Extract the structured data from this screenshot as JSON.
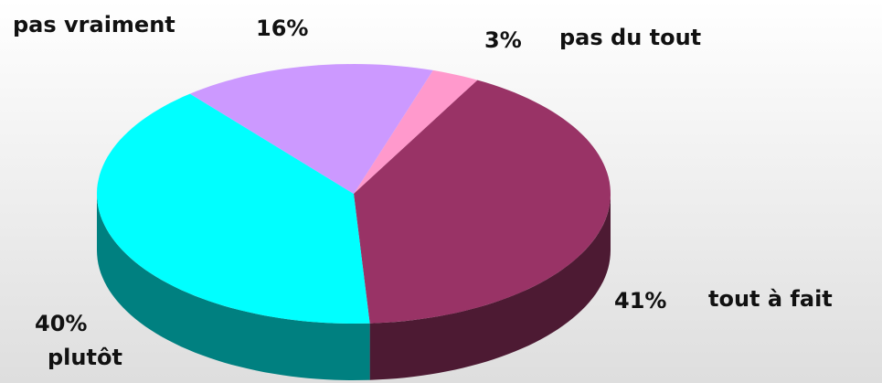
{
  "chart_data": {
    "type": "pie3d",
    "categories": [
      "pas du tout",
      "tout à fait",
      "plutôt",
      "pas vraiment"
    ],
    "values": [
      3,
      41,
      40,
      16
    ],
    "value_labels": [
      "3%",
      "41%",
      "40%",
      "16%"
    ],
    "colors": [
      "#ff99cc",
      "#993366",
      "#00ffff",
      "#cc99ff"
    ]
  }
}
